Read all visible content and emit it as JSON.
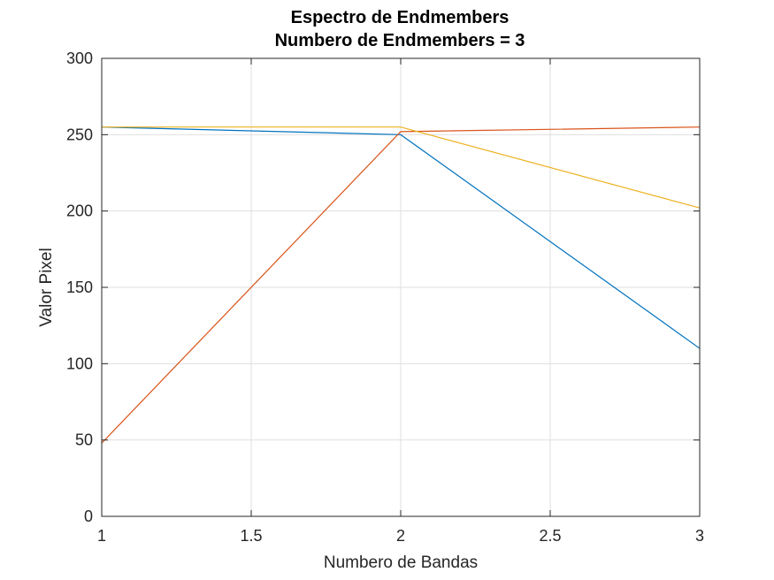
{
  "chart_data": {
    "type": "line",
    "title": "Espectro de Endmembers",
    "subtitle": "Numbero de Endmembers = 3",
    "xlabel": "Numbero de Bandas",
    "ylabel": "Valor Pixel",
    "xlim": [
      1,
      3
    ],
    "ylim": [
      0,
      300
    ],
    "x_ticks": [
      "1",
      "1.5",
      "2",
      "2.5",
      "3"
    ],
    "y_ticks": [
      "0",
      "50",
      "100",
      "150",
      "200",
      "250",
      "300"
    ],
    "grid": true,
    "x": [
      1,
      2,
      3
    ],
    "series": [
      {
        "values": [
          255,
          250,
          110
        ],
        "color": "#0072BD"
      },
      {
        "values": [
          48,
          252,
          255
        ],
        "color": "#D95319"
      },
      {
        "values": [
          255,
          255,
          202
        ],
        "color": "#EDB120"
      }
    ]
  }
}
